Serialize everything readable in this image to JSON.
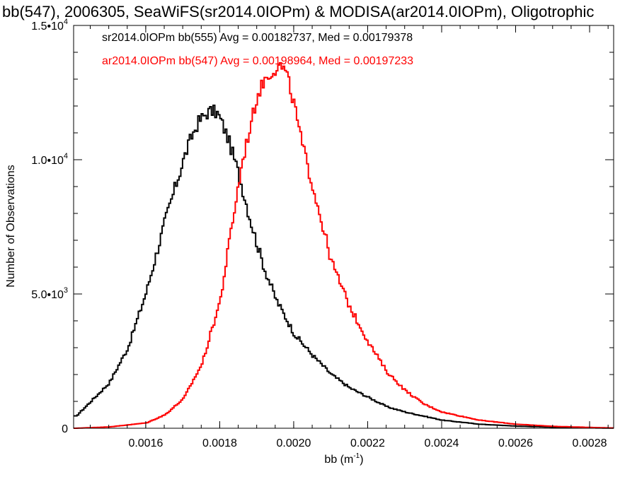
{
  "chart_data": {
    "type": "histogram",
    "title": "bb(547), 2006305, SeaWiFS(sr2014.0IOPm) & MODISA(ar2014.0IOPm), Oligotrophic",
    "xlabel": "bb (m",
    "xlabel_sup": "-1",
    "xlabel_end": ")",
    "ylabel": "Number of Observations",
    "xlim": [
      0.001405,
      0.002865
    ],
    "ylim": [
      0,
      15000
    ],
    "xticks": [
      {
        "value": 0.0016,
        "label": "0.0016"
      },
      {
        "value": 0.0018,
        "label": "0.0018"
      },
      {
        "value": 0.002,
        "label": "0.0020"
      },
      {
        "value": 0.0022,
        "label": "0.0022"
      },
      {
        "value": 0.0024,
        "label": "0.0024"
      },
      {
        "value": 0.0026,
        "label": "0.0026"
      },
      {
        "value": 0.0028,
        "label": "0.0028"
      }
    ],
    "yticks": [
      {
        "value": 0,
        "label": "0",
        "exp": ""
      },
      {
        "value": 5000,
        "label": "5.0•10",
        "exp": "3"
      },
      {
        "value": 10000,
        "label": "1.0•10",
        "exp": "4"
      },
      {
        "value": 15000,
        "label": "1.5•10",
        "exp": "4"
      }
    ],
    "series": [
      {
        "name": "sr2014.0IOPm bb(555) Avg = 0.00182737, Med = 0.00179378",
        "color": "#000000",
        "x": [
          0.00141,
          0.00145,
          0.0015,
          0.00155,
          0.0016,
          0.00165,
          0.0017,
          0.00172,
          0.00174,
          0.00176,
          0.00177,
          0.00178,
          0.00179,
          0.0018,
          0.00182,
          0.00184,
          0.00186,
          0.00188,
          0.0019,
          0.00192,
          0.00195,
          0.002,
          0.00205,
          0.0021,
          0.00215,
          0.0022,
          0.00225,
          0.0023,
          0.00235,
          0.0024,
          0.0025,
          0.0026,
          0.0027,
          0.0028,
          0.00286
        ],
        "y": [
          450,
          1000,
          1700,
          3000,
          5100,
          7700,
          10000,
          10800,
          11400,
          11700,
          11800,
          11800,
          11750,
          11500,
          10800,
          9900,
          8900,
          7800,
          6800,
          5900,
          4800,
          3500,
          2700,
          2000,
          1500,
          1150,
          800,
          600,
          450,
          300,
          150,
          80,
          40,
          15,
          5
        ]
      },
      {
        "name": "ar2014.0IOPm bb(547) Avg = 0.00198964, Med = 0.00197233",
        "color": "#ff0000",
        "x": [
          0.00141,
          0.0015,
          0.0016,
          0.00165,
          0.0017,
          0.00175,
          0.0018,
          0.00183,
          0.00186,
          0.00189,
          0.0019,
          0.00192,
          0.00194,
          0.00195,
          0.00196,
          0.00197,
          0.00198,
          0.002,
          0.00202,
          0.00205,
          0.0021,
          0.00215,
          0.0022,
          0.00225,
          0.0023,
          0.00235,
          0.0024,
          0.0025,
          0.0026,
          0.0027,
          0.0028,
          0.00286
        ],
        "y": [
          0,
          50,
          200,
          500,
          1100,
          2400,
          4800,
          7500,
          10000,
          11800,
          12400,
          13000,
          13300,
          13400,
          13500,
          13400,
          13100,
          12000,
          10600,
          9000,
          6200,
          4500,
          3200,
          2100,
          1400,
          900,
          600,
          300,
          150,
          70,
          30,
          10
        ]
      }
    ]
  }
}
